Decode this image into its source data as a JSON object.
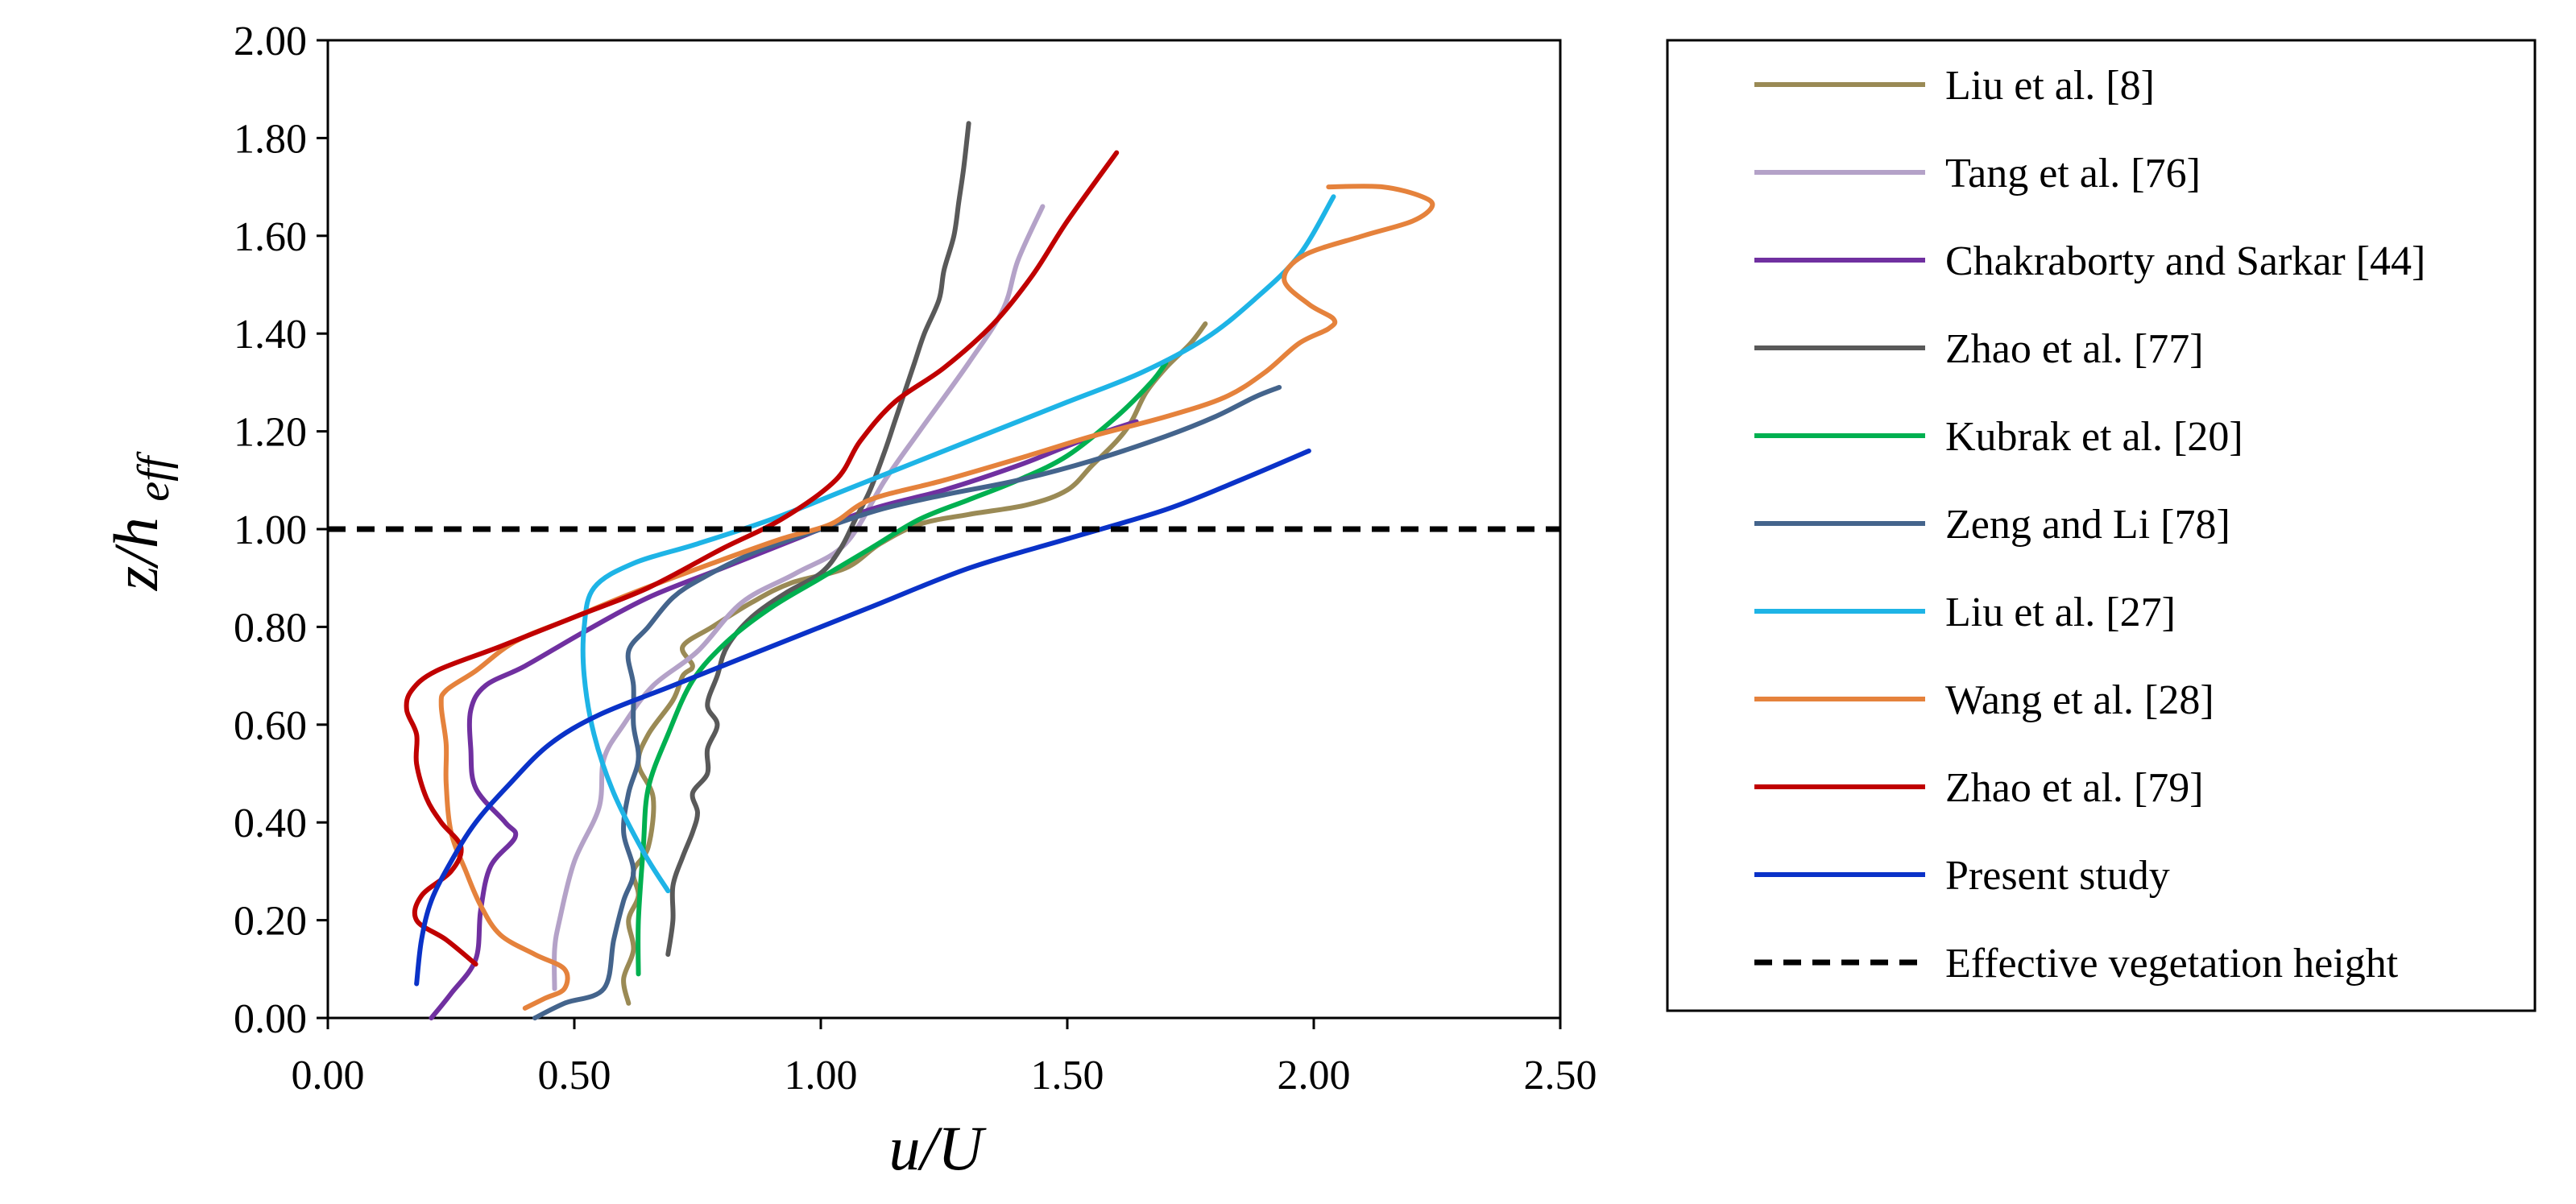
{
  "chart_data": {
    "type": "line",
    "title": "",
    "xlabel": "u/U",
    "ylabel_main": "z/h",
    "ylabel_sub": "eff",
    "xlim": [
      0,
      2.5
    ],
    "ylim": [
      0,
      2
    ],
    "xticks": [
      "0.00",
      "0.50",
      "1.00",
      "1.50",
      "2.00",
      "2.50"
    ],
    "yticks": [
      "0.00",
      "0.20",
      "0.40",
      "0.60",
      "0.80",
      "1.00",
      "1.20",
      "1.40",
      "1.60",
      "1.80",
      "2.00"
    ],
    "grid": false,
    "legend_position": "right",
    "series": [
      {
        "name": "Liu et al. [8]",
        "color": "#9A8A55",
        "points": [
          [
            0.61,
            0.03
          ],
          [
            0.6,
            0.08
          ],
          [
            0.62,
            0.14
          ],
          [
            0.61,
            0.2
          ],
          [
            0.63,
            0.25
          ],
          [
            0.62,
            0.3
          ],
          [
            0.65,
            0.35
          ],
          [
            0.66,
            0.45
          ],
          [
            0.63,
            0.52
          ],
          [
            0.65,
            0.58
          ],
          [
            0.7,
            0.65
          ],
          [
            0.72,
            0.7
          ],
          [
            0.74,
            0.72
          ],
          [
            0.72,
            0.76
          ],
          [
            0.78,
            0.8
          ],
          [
            0.86,
            0.85
          ],
          [
            0.94,
            0.89
          ],
          [
            1.05,
            0.92
          ],
          [
            1.12,
            0.97
          ],
          [
            1.2,
            1.01
          ],
          [
            1.3,
            1.03
          ],
          [
            1.42,
            1.05
          ],
          [
            1.5,
            1.08
          ],
          [
            1.55,
            1.13
          ],
          [
            1.6,
            1.18
          ],
          [
            1.63,
            1.22
          ],
          [
            1.66,
            1.28
          ],
          [
            1.7,
            1.33
          ],
          [
            1.75,
            1.38
          ],
          [
            1.78,
            1.42
          ]
        ]
      },
      {
        "name": "Tang et al. [76]",
        "color": "#B4A2C8",
        "points": [
          [
            0.46,
            0.06
          ],
          [
            0.46,
            0.14
          ],
          [
            0.47,
            0.2
          ],
          [
            0.5,
            0.32
          ],
          [
            0.55,
            0.43
          ],
          [
            0.56,
            0.53
          ],
          [
            0.6,
            0.6
          ],
          [
            0.66,
            0.68
          ],
          [
            0.75,
            0.75
          ],
          [
            0.84,
            0.85
          ],
          [
            0.95,
            0.91
          ],
          [
            1.05,
            0.97
          ],
          [
            1.13,
            1.1
          ],
          [
            1.2,
            1.2
          ],
          [
            1.3,
            1.34
          ],
          [
            1.37,
            1.45
          ],
          [
            1.4,
            1.55
          ],
          [
            1.45,
            1.66
          ]
        ]
      },
      {
        "name": "Chakraborty and Sarkar [44]",
        "color": "#7030A0",
        "points": [
          [
            0.21,
            0.0
          ],
          [
            0.25,
            0.05
          ],
          [
            0.3,
            0.12
          ],
          [
            0.31,
            0.22
          ],
          [
            0.33,
            0.31
          ],
          [
            0.38,
            0.37
          ],
          [
            0.36,
            0.4
          ],
          [
            0.3,
            0.47
          ],
          [
            0.29,
            0.55
          ],
          [
            0.29,
            0.63
          ],
          [
            0.32,
            0.68
          ],
          [
            0.4,
            0.72
          ],
          [
            0.52,
            0.79
          ],
          [
            0.65,
            0.86
          ],
          [
            0.8,
            0.92
          ],
          [
            0.95,
            0.98
          ],
          [
            1.1,
            1.04
          ],
          [
            1.25,
            1.08
          ],
          [
            1.4,
            1.13
          ],
          [
            1.5,
            1.17
          ],
          [
            1.58,
            1.2
          ],
          [
            1.64,
            1.22
          ]
        ]
      },
      {
        "name": "Zhao et al. [77]",
        "color": "#595959",
        "points": [
          [
            0.69,
            0.13
          ],
          [
            0.7,
            0.2
          ],
          [
            0.7,
            0.27
          ],
          [
            0.72,
            0.33
          ],
          [
            0.74,
            0.38
          ],
          [
            0.75,
            0.42
          ],
          [
            0.74,
            0.46
          ],
          [
            0.77,
            0.5
          ],
          [
            0.77,
            0.55
          ],
          [
            0.79,
            0.6
          ],
          [
            0.77,
            0.64
          ],
          [
            0.79,
            0.7
          ],
          [
            0.81,
            0.76
          ],
          [
            0.86,
            0.82
          ],
          [
            0.93,
            0.87
          ],
          [
            1.0,
            0.91
          ],
          [
            1.04,
            0.96
          ],
          [
            1.07,
            1.02
          ],
          [
            1.1,
            1.08
          ],
          [
            1.13,
            1.16
          ],
          [
            1.15,
            1.22
          ],
          [
            1.17,
            1.28
          ],
          [
            1.19,
            1.34
          ],
          [
            1.21,
            1.4
          ],
          [
            1.24,
            1.47
          ],
          [
            1.25,
            1.53
          ],
          [
            1.27,
            1.6
          ],
          [
            1.28,
            1.67
          ],
          [
            1.29,
            1.74
          ],
          [
            1.3,
            1.83
          ]
        ]
      },
      {
        "name": "Kubrak et al. [20]",
        "color": "#00B050",
        "points": [
          [
            0.63,
            0.09
          ],
          [
            0.63,
            0.2
          ],
          [
            0.64,
            0.35
          ],
          [
            0.65,
            0.47
          ],
          [
            0.69,
            0.58
          ],
          [
            0.74,
            0.69
          ],
          [
            0.81,
            0.77
          ],
          [
            0.9,
            0.84
          ],
          [
            1.0,
            0.9
          ],
          [
            1.1,
            0.96
          ],
          [
            1.2,
            1.02
          ],
          [
            1.3,
            1.06
          ],
          [
            1.4,
            1.1
          ],
          [
            1.5,
            1.15
          ],
          [
            1.6,
            1.23
          ],
          [
            1.67,
            1.3
          ],
          [
            1.7,
            1.34
          ]
        ]
      },
      {
        "name": "Zeng and Li [78]",
        "color": "#44648C",
        "points": [
          [
            0.42,
            0.0
          ],
          [
            0.48,
            0.03
          ],
          [
            0.56,
            0.06
          ],
          [
            0.58,
            0.16
          ],
          [
            0.6,
            0.24
          ],
          [
            0.62,
            0.3
          ],
          [
            0.6,
            0.38
          ],
          [
            0.61,
            0.46
          ],
          [
            0.63,
            0.53
          ],
          [
            0.62,
            0.6
          ],
          [
            0.62,
            0.68
          ],
          [
            0.61,
            0.75
          ],
          [
            0.65,
            0.8
          ],
          [
            0.7,
            0.86
          ],
          [
            0.76,
            0.9
          ],
          [
            0.86,
            0.95
          ],
          [
            1.0,
            1.0
          ],
          [
            1.12,
            1.04
          ],
          [
            1.25,
            1.07
          ],
          [
            1.4,
            1.1
          ],
          [
            1.55,
            1.14
          ],
          [
            1.7,
            1.19
          ],
          [
            1.8,
            1.23
          ],
          [
            1.88,
            1.27
          ],
          [
            1.93,
            1.29
          ]
        ]
      },
      {
        "name": "Liu et al. [27]",
        "color": "#1EB4E6",
        "points": [
          [
            0.69,
            0.26
          ],
          [
            0.64,
            0.34
          ],
          [
            0.58,
            0.46
          ],
          [
            0.54,
            0.58
          ],
          [
            0.52,
            0.7
          ],
          [
            0.52,
            0.8
          ],
          [
            0.54,
            0.88
          ],
          [
            0.62,
            0.93
          ],
          [
            0.75,
            0.97
          ],
          [
            0.9,
            1.02
          ],
          [
            1.05,
            1.08
          ],
          [
            1.2,
            1.14
          ],
          [
            1.35,
            1.2
          ],
          [
            1.5,
            1.26
          ],
          [
            1.65,
            1.32
          ],
          [
            1.78,
            1.39
          ],
          [
            1.88,
            1.47
          ],
          [
            1.97,
            1.56
          ],
          [
            2.04,
            1.68
          ]
        ]
      },
      {
        "name": "Wang et al. [28]",
        "color": "#E5823C",
        "points": [
          [
            0.4,
            0.02
          ],
          [
            0.44,
            0.04
          ],
          [
            0.48,
            0.06
          ],
          [
            0.48,
            0.1
          ],
          [
            0.42,
            0.13
          ],
          [
            0.35,
            0.17
          ],
          [
            0.31,
            0.23
          ],
          [
            0.28,
            0.3
          ],
          [
            0.25,
            0.38
          ],
          [
            0.24,
            0.48
          ],
          [
            0.24,
            0.56
          ],
          [
            0.23,
            0.64
          ],
          [
            0.24,
            0.67
          ],
          [
            0.3,
            0.71
          ],
          [
            0.38,
            0.77
          ],
          [
            0.5,
            0.82
          ],
          [
            0.62,
            0.87
          ],
          [
            0.78,
            0.93
          ],
          [
            0.92,
            0.98
          ],
          [
            1.02,
            1.01
          ],
          [
            1.1,
            1.06
          ],
          [
            1.25,
            1.1
          ],
          [
            1.42,
            1.15
          ],
          [
            1.55,
            1.19
          ],
          [
            1.7,
            1.23
          ],
          [
            1.82,
            1.27
          ],
          [
            1.9,
            1.32
          ],
          [
            1.97,
            1.38
          ],
          [
            2.03,
            1.41
          ],
          [
            2.04,
            1.43
          ],
          [
            1.99,
            1.46
          ],
          [
            1.94,
            1.51
          ],
          [
            1.98,
            1.56
          ],
          [
            2.1,
            1.6
          ],
          [
            2.2,
            1.63
          ],
          [
            2.24,
            1.66
          ],
          [
            2.22,
            1.68
          ],
          [
            2.14,
            1.7
          ],
          [
            2.03,
            1.7
          ]
        ]
      },
      {
        "name": "Zhao et al. [79]",
        "color": "#C00000",
        "points": [
          [
            0.3,
            0.11
          ],
          [
            0.24,
            0.16
          ],
          [
            0.18,
            0.2
          ],
          [
            0.19,
            0.25
          ],
          [
            0.25,
            0.3
          ],
          [
            0.27,
            0.35
          ],
          [
            0.23,
            0.4
          ],
          [
            0.2,
            0.45
          ],
          [
            0.18,
            0.52
          ],
          [
            0.18,
            0.58
          ],
          [
            0.16,
            0.63
          ],
          [
            0.17,
            0.67
          ],
          [
            0.22,
            0.71
          ],
          [
            0.35,
            0.76
          ],
          [
            0.5,
            0.82
          ],
          [
            0.65,
            0.88
          ],
          [
            0.8,
            0.96
          ],
          [
            0.92,
            1.02
          ],
          [
            1.03,
            1.1
          ],
          [
            1.08,
            1.18
          ],
          [
            1.15,
            1.26
          ],
          [
            1.25,
            1.33
          ],
          [
            1.35,
            1.42
          ],
          [
            1.43,
            1.52
          ],
          [
            1.5,
            1.63
          ],
          [
            1.6,
            1.77
          ]
        ]
      },
      {
        "name": "Present study",
        "color": "#0A32C8",
        "points": [
          [
            0.18,
            0.07
          ],
          [
            0.19,
            0.16
          ],
          [
            0.21,
            0.24
          ],
          [
            0.25,
            0.32
          ],
          [
            0.3,
            0.4
          ],
          [
            0.37,
            0.48
          ],
          [
            0.45,
            0.56
          ],
          [
            0.55,
            0.62
          ],
          [
            0.7,
            0.68
          ],
          [
            0.9,
            0.76
          ],
          [
            1.1,
            0.84
          ],
          [
            1.3,
            0.92
          ],
          [
            1.5,
            0.98
          ],
          [
            1.7,
            1.04
          ],
          [
            1.85,
            1.1
          ],
          [
            1.99,
            1.16
          ]
        ]
      },
      {
        "name": "Effective vegetation height",
        "color": "#000000",
        "dashed": true,
        "points": [
          [
            0.0,
            1.0
          ],
          [
            2.5,
            1.0
          ]
        ]
      }
    ]
  }
}
